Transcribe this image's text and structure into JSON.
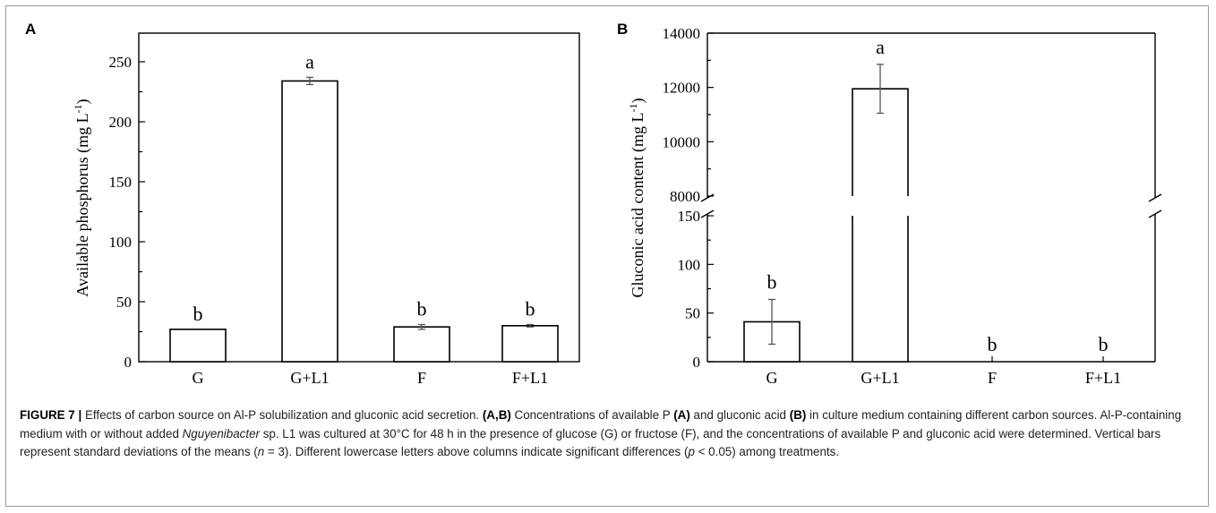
{
  "chart_data": [
    {
      "panel": "A",
      "type": "bar",
      "categories": [
        "G",
        "G+L1",
        "F",
        "F+L1"
      ],
      "values": [
        27,
        234,
        29,
        30
      ],
      "errors": [
        0,
        3,
        2,
        1
      ],
      "letters": [
        "b",
        "a",
        "b",
        "b"
      ],
      "ylabel": "Available phosphorus (mg L-1)",
      "ylabel_main": "Available phosphorus (mg L",
      "ylabel_sup": "-1",
      "ylabel_end": ")",
      "ylim": [
        0,
        250
      ],
      "yticks": [
        0,
        50,
        100,
        150,
        200,
        250
      ],
      "bar_color": "#ffffff"
    },
    {
      "panel": "B",
      "type": "bar",
      "categories": [
        "G",
        "G+L1",
        "F",
        "F+L1"
      ],
      "values": [
        41,
        11950,
        0,
        0
      ],
      "errors": [
        23,
        900,
        0,
        0
      ],
      "letters": [
        "b",
        "a",
        "b",
        "b"
      ],
      "ylabel": "Gluconic acid content (mg L-1)",
      "ylabel_main": "Gluconic acid content (mg L",
      "ylabel_sup": "-1",
      "ylabel_end": ")",
      "axis_break": true,
      "lower_ylim": [
        0,
        150
      ],
      "lower_yticks": [
        0,
        50,
        100,
        150
      ],
      "upper_ylim": [
        8000,
        14000
      ],
      "upper_yticks": [
        8000,
        10000,
        12000,
        14000
      ],
      "bar_color": "#ffffff"
    }
  ],
  "caption": {
    "label": "FIGURE 7 |",
    "t1": " Effects of carbon source on Al-P solubilization and gluconic acid secretion. ",
    "b1": "(A,B)",
    "t2": " Concentrations of available P ",
    "b2": "(A)",
    "t3": " and gluconic acid ",
    "b3": "(B)",
    "t4": " in culture medium containing different carbon sources. Al-P-containing medium with or without added ",
    "i1": "Nguyenibacter",
    "t5": " sp. L1 was cultured at 30°C for 48 h in the presence of glucose (G) or fructose (F), and the concentrations of available P and gluconic acid were determined. Vertical bars represent standard deviations of the means (",
    "i2": "n",
    "t6": " = 3). Different lowercase letters above columns indicate significant differences (",
    "i3": "p",
    "t7": " < 0.05) among treatments."
  }
}
